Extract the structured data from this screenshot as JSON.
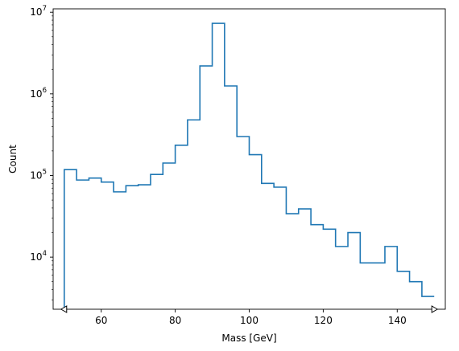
{
  "chart_data": {
    "type": "step",
    "title": "",
    "xlabel": "Mass [GeV]",
    "ylabel": "Count",
    "xlim": [
      47,
      153
    ],
    "ylim": [
      2300,
      11000000
    ],
    "yscale": "log",
    "grid": false,
    "legend": "none",
    "x_ticks": [
      {
        "value": 60,
        "label": "60"
      },
      {
        "value": 80,
        "label": "80"
      },
      {
        "value": 100,
        "label": "100"
      },
      {
        "value": 120,
        "label": "120"
      },
      {
        "value": 140,
        "label": "140"
      }
    ],
    "y_ticks": [
      {
        "value": 10000,
        "base": "10",
        "exp": "4"
      },
      {
        "value": 100000,
        "base": "10",
        "exp": "5"
      },
      {
        "value": 1000000,
        "base": "10",
        "exp": "6"
      },
      {
        "value": 10000000,
        "base": "10",
        "exp": "7"
      }
    ],
    "bin_edges": [
      50,
      53.33,
      56.67,
      60,
      63.33,
      66.67,
      70,
      73.33,
      76.67,
      80,
      83.33,
      86.67,
      90,
      93.33,
      96.67,
      100,
      103.33,
      106.67,
      110,
      113.33,
      116.67,
      120,
      123.33,
      126.67,
      130,
      133.33,
      136.67,
      140,
      143.33,
      146.67,
      150
    ],
    "counts": [
      118000,
      88000,
      93000,
      83000,
      63000,
      75000,
      77000,
      103000,
      142000,
      235000,
      480000,
      2200000,
      7300000,
      1250000,
      300000,
      180000,
      80000,
      72000,
      34000,
      39000,
      25000,
      22000,
      13500,
      20000,
      8500,
      8500,
      13500,
      6700,
      5000,
      3300
    ],
    "series": [
      {
        "color": "#1f77b4"
      }
    ],
    "out_of_range_markers": [
      {
        "side": "left",
        "value": 50
      },
      {
        "side": "right",
        "value": 150
      }
    ]
  }
}
